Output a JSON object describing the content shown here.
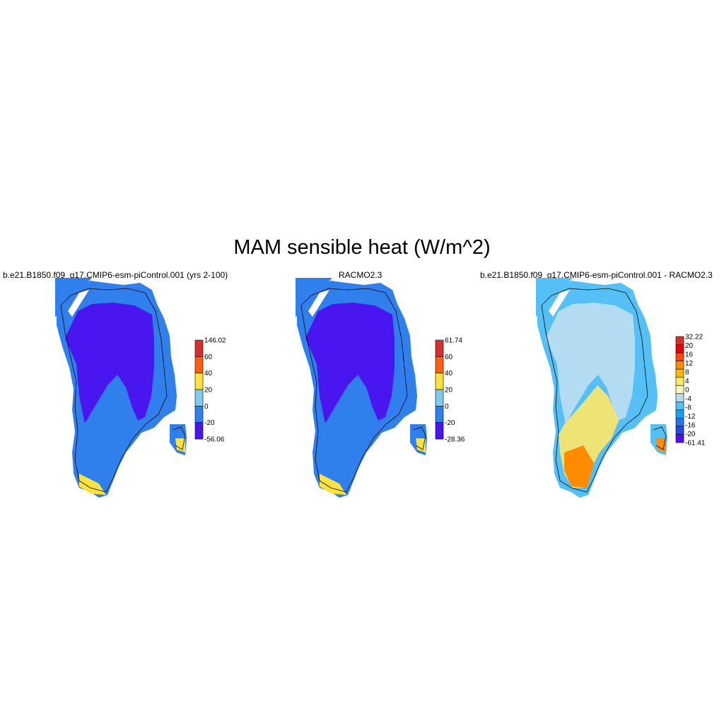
{
  "figure": {
    "title": "MAM sensible heat (W/m^2)"
  },
  "panels": [
    {
      "title": "b.e21.B1850.f09_g17.CMIP6-esm-piControl.001 (yrs 2-100)",
      "colorbar": {
        "labels": [
          "146.02",
          "60",
          "40",
          "20",
          "0",
          "-20",
          "-56.06"
        ],
        "colors": [
          "#d62f2f",
          "#ff5f0f",
          "#fde23d",
          "#82c9f0",
          "#2f7fec",
          "#4a16f0"
        ]
      },
      "zones": [
        "#4a16f0",
        "#2f7fec",
        "#82c9f0",
        "#fde23d",
        "#ff5f0f"
      ]
    },
    {
      "title": "RACMO2.3",
      "colorbar": {
        "labels": [
          "61.74",
          "60",
          "40",
          "20",
          "0",
          "-20",
          "-28.36"
        ],
        "colors": [
          "#d62f2f",
          "#ff5f0f",
          "#fde23d",
          "#82c9f0",
          "#2f7fec",
          "#4a16f0"
        ]
      },
      "zones": [
        "#4a16f0",
        "#2f7fec",
        "#82c9f0",
        "#fde23d",
        "#ff5f0f"
      ]
    },
    {
      "title": "b.e21.B1850.f09_g17.CMIP6-esm-piControl.001 - RACMO2.3",
      "colorbar": {
        "labels": [
          "32.22",
          "20",
          "16",
          "12",
          "8",
          "4",
          "0",
          "-4",
          "-8",
          "-12",
          "-16",
          "-20",
          "-61.41"
        ],
        "colors": [
          "#d62f2f",
          "#e5000b",
          "#ff4800",
          "#ff8c00",
          "#ffbb00",
          "#ffe868",
          "#fdfbbf",
          "#b3dcf3",
          "#54c0f6",
          "#19a0ec",
          "#2a73eb",
          "#2448e8",
          "#5010f2"
        ]
      },
      "zones": [
        "#b3dcf3",
        "#54c0f6",
        "#ffe868",
        "#ff8c00",
        "#5010f2"
      ]
    }
  ]
}
